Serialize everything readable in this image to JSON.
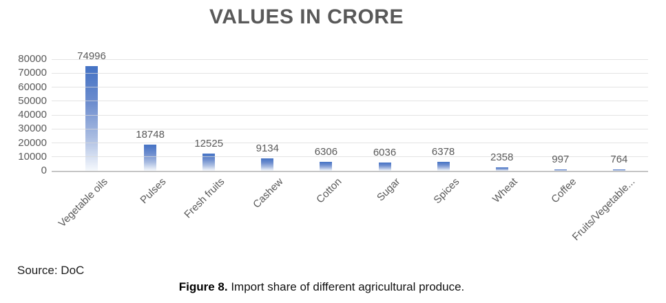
{
  "page": {
    "source_note": "Source: DoC",
    "caption_bold": "Figure 8.",
    "caption_rest": " Import share of different agricultural produce."
  },
  "chart_data": {
    "type": "bar",
    "title": "VALUES IN CRORE",
    "categories": [
      "Vegetable oils",
      "Pulses",
      "Fresh fruits",
      "Cashew",
      "Cotton",
      "Sugar",
      "Spices",
      "Wheat",
      "Coffee",
      "Fruits/Vegetable..."
    ],
    "values": [
      74996,
      18748,
      12525,
      9134,
      6306,
      6036,
      6378,
      2358,
      997,
      764
    ],
    "data_labels_shown": true,
    "xlabel": "",
    "ylabel": "",
    "ylim": [
      0,
      80000
    ],
    "ytick_interval": 10000,
    "yticks": [
      0,
      10000,
      20000,
      30000,
      40000,
      50000,
      60000,
      70000,
      80000
    ],
    "grid": true,
    "legend_position": "none",
    "colors": {
      "bar_top": "#4472c4",
      "bar_bottom": "#f6f9fd",
      "title_text": "#595959",
      "axis_text": "#595959",
      "value_label_text": "#595959",
      "gridline": "#d9d9d9",
      "axis_line": "#bfbfbf"
    }
  }
}
